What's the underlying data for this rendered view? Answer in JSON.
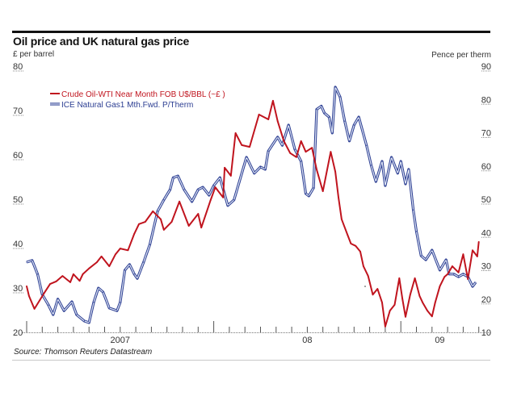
{
  "chart_data": {
    "type": "line",
    "title": "Oil price and UK natural gas price",
    "source": "Source: Thomson Reuters Datastream",
    "left_axis": {
      "label": "£ per barrel",
      "ticks": [
        20,
        30,
        40,
        50,
        60,
        70,
        80
      ],
      "range": [
        20,
        80
      ]
    },
    "right_axis": {
      "label": "Pence per therm",
      "ticks": [
        10,
        20,
        30,
        40,
        50,
        60,
        70,
        80,
        90
      ],
      "range": [
        10,
        90
      ]
    },
    "x_axis": {
      "unit": "months since Jan 2007",
      "range": [
        0,
        29
      ],
      "major_ticks": [
        0,
        12,
        24
      ],
      "minor_ticks": [
        1,
        2,
        3,
        4,
        5,
        6,
        7,
        8,
        9,
        10,
        11,
        13,
        14,
        15,
        16,
        17,
        18,
        19,
        20,
        21,
        22,
        23,
        25,
        26,
        27,
        28,
        29
      ],
      "year_labels": [
        {
          "label": "2007",
          "at": 6
        },
        {
          "label": "08",
          "at": 18
        },
        {
          "label": "09",
          "at": 26.5
        }
      ]
    },
    "grid": false,
    "legend_position": "top-left",
    "colors": {
      "oil": "#c0141e",
      "gas_outline": "#2c3e92",
      "gas_fill": "#dfe6f5",
      "axis": "#555555"
    },
    "series": [
      {
        "name": "Crude Oil-WTI Near Month FOB U$/BBL (~£ )",
        "axis": "left",
        "x": [
          0,
          0.15,
          0.5,
          0.85,
          1.1,
          1.5,
          1.9,
          2.3,
          2.8,
          3.0,
          3.4,
          3.6,
          4.0,
          4.5,
          4.8,
          5.3,
          5.7,
          6.0,
          6.5,
          6.9,
          7.2,
          7.6,
          8.1,
          8.6,
          8.8,
          9.3,
          9.8,
          10.4,
          11.0,
          11.2,
          11.8,
          12.1,
          12.6,
          12.7,
          13.1,
          13.4,
          13.8,
          14.3,
          14.9,
          15.5,
          15.8,
          16.1,
          16.5,
          16.9,
          17.3,
          17.6,
          17.9,
          18.3,
          18.6,
          19.0,
          19.5,
          19.8,
          20.0,
          20.2,
          20.6,
          20.8,
          21.1,
          21.4,
          21.6,
          21.9,
          22.2,
          22.5,
          22.8,
          23.0,
          23.3,
          23.6,
          23.9,
          24.1,
          24.3,
          24.6,
          24.9,
          25.2,
          25.4,
          25.7,
          26.0,
          26.2,
          26.5,
          26.8,
          27.0,
          27.3,
          27.7,
          28.0,
          28.3,
          28.6,
          28.9,
          29.0
        ],
        "values": [
          30.4,
          28.2,
          25.3,
          27.3,
          28.7,
          30.9,
          31.5,
          32.7,
          31.3,
          33.1,
          31.6,
          33.1,
          34.4,
          35.8,
          37.1,
          34.9,
          37.6,
          38.9,
          38.5,
          42.2,
          44.4,
          44.9,
          47.3,
          45.5,
          43.1,
          44.9,
          49.5,
          44.0,
          46.7,
          43.6,
          49.8,
          52.7,
          50.4,
          57.1,
          55.3,
          64.9,
          62.2,
          61.8,
          69.1,
          68.0,
          72.2,
          67.6,
          63.1,
          60.4,
          59.5,
          63.1,
          60.7,
          61.6,
          56.7,
          51.8,
          60.7,
          56.2,
          50.4,
          45.5,
          41.8,
          40.0,
          39.5,
          38.2,
          34.9,
          32.7,
          28.5,
          29.8,
          26.7,
          21.3,
          24.9,
          26.2,
          32.2,
          27.6,
          23.5,
          28.5,
          32.2,
          28.2,
          26.7,
          24.9,
          23.6,
          26.7,
          30.4,
          32.5,
          33.1,
          34.9,
          33.5,
          37.6,
          32.0,
          38.5,
          37.1,
          40.4
        ]
      },
      {
        "name": "ICE Natural Gas1 Mth.Fwd. P/Therm",
        "axis": "right",
        "x": [
          0,
          0.35,
          0.7,
          1.0,
          1.4,
          1.7,
          2.0,
          2.4,
          2.9,
          3.2,
          3.7,
          4.0,
          4.3,
          4.6,
          4.9,
          5.3,
          5.8,
          6.0,
          6.3,
          6.6,
          6.9,
          7.1,
          7.5,
          7.9,
          8.4,
          8.8,
          9.2,
          9.4,
          9.7,
          10.1,
          10.6,
          11.0,
          11.3,
          11.7,
          12.0,
          12.4,
          12.9,
          13.3,
          14.1,
          14.6,
          15.0,
          15.3,
          15.5,
          16.1,
          16.4,
          16.8,
          17.2,
          17.6,
          17.9,
          18.1,
          18.4,
          18.6,
          18.9,
          19.1,
          19.4,
          19.6,
          19.8,
          20.1,
          20.4,
          20.7,
          21.0,
          21.3,
          21.8,
          22.1,
          22.4,
          22.8,
          23.0,
          23.4,
          23.8,
          24.0,
          24.3,
          24.5,
          24.8,
          25.0,
          25.3,
          25.6,
          26.0,
          26.5,
          26.9,
          27.1,
          27.4,
          27.7,
          28.0,
          28.3,
          28.6,
          28.8
        ],
        "values": [
          31.1,
          31.6,
          27.5,
          21.4,
          18.2,
          15.3,
          20.0,
          16.5,
          19.2,
          15.3,
          13.4,
          12.9,
          19.0,
          23.3,
          22.1,
          17.3,
          16.5,
          19.0,
          28.7,
          30.4,
          27.5,
          26.2,
          31.1,
          36.4,
          46.4,
          49.8,
          52.9,
          56.5,
          57.0,
          52.9,
          49.3,
          52.9,
          53.6,
          51.2,
          54.1,
          56.5,
          48.1,
          49.8,
          62.6,
          57.8,
          59.7,
          59.0,
          64.5,
          68.7,
          66.2,
          72.3,
          65.0,
          61.4,
          51.7,
          51.0,
          53.4,
          77.0,
          78.0,
          75.9,
          74.7,
          69.9,
          83.7,
          80.8,
          73.5,
          67.5,
          72.3,
          74.7,
          66.2,
          60.2,
          55.3,
          61.4,
          54.1,
          62.6,
          57.8,
          61.4,
          54.6,
          59.0,
          46.8,
          40.3,
          33.0,
          31.8,
          34.7,
          28.7,
          31.8,
          27.5,
          27.5,
          26.7,
          27.5,
          26.7,
          23.8,
          25.0
        ]
      }
    ],
    "legend": [
      {
        "label": "Crude Oil-WTI Near Month FOB U$/BBL (~£ )",
        "series": "oil"
      },
      {
        "label": "ICE Natural Gas1 Mth.Fwd. P/Therm",
        "series": "gas"
      }
    ]
  }
}
